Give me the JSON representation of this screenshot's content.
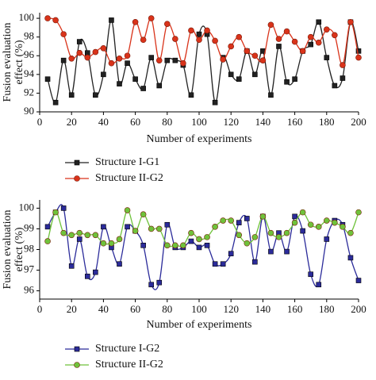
{
  "chart_data": [
    {
      "type": "line",
      "ylabel": [
        "Fusion evaluation",
        "effect (%)"
      ],
      "xlabel": "Number of experiments",
      "x": [
        5,
        10,
        15,
        20,
        25,
        30,
        35,
        40,
        45,
        50,
        55,
        60,
        65,
        70,
        75,
        80,
        85,
        90,
        95,
        100,
        105,
        110,
        115,
        120,
        125,
        130,
        135,
        140,
        145,
        150,
        155,
        160,
        165,
        170,
        175,
        180,
        185,
        190,
        195,
        200
      ],
      "xlim": [
        0,
        200
      ],
      "xticks": [
        0,
        20,
        40,
        60,
        80,
        100,
        120,
        140,
        160,
        180,
        200
      ],
      "ylim": [
        90,
        100.6
      ],
      "yticks": [
        90,
        92,
        94,
        96,
        98,
        100
      ],
      "series": [
        {
          "name": "Structure I-G1",
          "color": "#222222",
          "marker": "square",
          "values": [
            93.5,
            91,
            95.5,
            91.8,
            97.5,
            96.3,
            91.8,
            94,
            99.8,
            93,
            95.2,
            93.5,
            92.5,
            95.8,
            92.8,
            95.5,
            95.5,
            95,
            91.8,
            98.3,
            98.3,
            91,
            95.8,
            94,
            93.5,
            96.5,
            94,
            96.5,
            91.8,
            97,
            93.2,
            93.5,
            96.5,
            97.2,
            99.6,
            95.8,
            92.8,
            93.6,
            99.6,
            96.5
          ]
        },
        {
          "name": "Structure II-G2",
          "color": "#d9331a",
          "marker": "circle",
          "values": [
            100,
            99.8,
            98.3,
            95.7,
            96.3,
            95.8,
            96.4,
            96.8,
            95.2,
            95.7,
            96,
            99.6,
            97.7,
            100,
            95.5,
            99.4,
            97.8,
            95.2,
            98.7,
            97.7,
            98.7,
            97.6,
            95.6,
            97,
            98,
            96.5,
            96,
            95.5,
            99.3,
            97.8,
            98.6,
            97.5,
            96.5,
            98,
            97.4,
            98.8,
            98.2,
            95,
            99.6,
            95.8
          ]
        }
      ]
    },
    {
      "type": "line",
      "ylabel": [
        "Fusion evaluation",
        "effect (%)"
      ],
      "xlabel": "Number of experiments",
      "x": [
        5,
        10,
        15,
        20,
        25,
        30,
        35,
        40,
        45,
        50,
        55,
        60,
        65,
        70,
        75,
        80,
        85,
        90,
        95,
        100,
        105,
        110,
        115,
        120,
        125,
        130,
        135,
        140,
        145,
        150,
        155,
        160,
        165,
        170,
        175,
        180,
        185,
        190,
        195,
        200
      ],
      "xlim": [
        0,
        200
      ],
      "xticks": [
        0,
        20,
        40,
        60,
        80,
        100,
        120,
        140,
        160,
        180,
        200
      ],
      "ylim": [
        95.6,
        100.4
      ],
      "yticks": [
        96,
        97,
        98,
        99,
        100
      ],
      "series": [
        {
          "name": "Structure I-G2",
          "color": "#2b2b9a",
          "marker": "square",
          "values": [
            99.1,
            99.8,
            100,
            97.2,
            98.5,
            96.7,
            96.9,
            99.1,
            98.1,
            97.3,
            99.1,
            98.9,
            98.2,
            96.3,
            96.4,
            99.2,
            98.1,
            98.1,
            98.4,
            98.1,
            98.2,
            97.3,
            97.3,
            97.8,
            99.3,
            99.5,
            97.4,
            99.6,
            97.9,
            98.8,
            97.9,
            99.6,
            98.9,
            96.8,
            96.3,
            98.5,
            99.4,
            99.2,
            97.6,
            96.5
          ]
        },
        {
          "name": "Structure II-G2",
          "color": "#6fc23b",
          "marker": "circle",
          "values": [
            98.4,
            99.8,
            98.8,
            98.7,
            98.8,
            98.7,
            98.7,
            98.3,
            98.3,
            98.5,
            99.9,
            98.9,
            99.7,
            99,
            99,
            98.2,
            98.2,
            98.2,
            98.8,
            98.5,
            98.6,
            99.1,
            99.4,
            99.4,
            98.7,
            98.3,
            98.6,
            99.6,
            98.8,
            98.6,
            98.8,
            99.3,
            99.8,
            99.2,
            99.1,
            99.4,
            99.3,
            99.1,
            98.8,
            99.8
          ]
        }
      ]
    }
  ]
}
